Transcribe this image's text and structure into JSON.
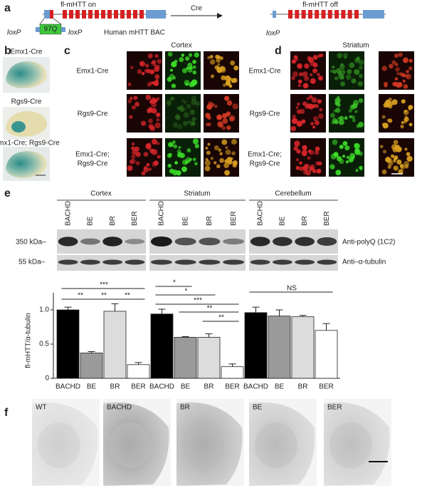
{
  "panel_labels": [
    "a",
    "b",
    "c",
    "d",
    "e",
    "f"
  ],
  "panel_a": {
    "construct_on": "fl-mHTT on",
    "arrow": "Cre",
    "construct_off": "fl-mHTT off",
    "loxp_left": "loxP",
    "repeat": "97Q",
    "loxp_right": "loxP",
    "bac": "Human mHTT BAC",
    "loxp_off": "loxP"
  },
  "panel_b": {
    "rows": [
      "Emx1-Cre",
      "Rgs9-Cre",
      "Emx1-Cre; Rgs9-Cre"
    ]
  },
  "panel_c": {
    "title": "Cortex",
    "rows": [
      "Emx1-Cre",
      "Rgs9-Cre",
      [
        "Emx1-Cre;",
        "Rgs9-Cre"
      ]
    ]
  },
  "panel_d": {
    "title": "Striatum",
    "rows": [
      "Emx1-Cre",
      "Rgs9-Cre",
      [
        "Emx1-Cre;",
        "Rgs9-Cre"
      ]
    ]
  },
  "panel_e": {
    "regions": [
      "Cortex",
      "Striatum",
      "Cerebellum"
    ],
    "lanes": [
      "BACHD",
      "BE",
      "BR",
      "BER",
      "BACHD",
      "BE",
      "BR",
      "BER",
      "BACHD",
      "BE",
      "BR",
      "BER"
    ],
    "markers": [
      "350 kDa–",
      "55 kDa–"
    ],
    "antibodies": [
      "Anti-polyQ (1C2)",
      "Anti–α-tubulin"
    ]
  },
  "chart_data": {
    "type": "bar",
    "y_label": "fl-mHTT/α-tubulin",
    "categories": [
      "BACHD",
      "BE",
      "BR",
      "BER",
      "BACHD",
      "BE",
      "BR",
      "BER",
      "BACHD",
      "BE",
      "BR",
      "BER"
    ],
    "values": [
      1.0,
      0.37,
      0.98,
      0.2,
      0.94,
      0.6,
      0.6,
      0.17,
      0.96,
      0.91,
      0.9,
      0.7
    ],
    "errors": [
      0.04,
      0.02,
      0.11,
      0.03,
      0.07,
      0.01,
      0.05,
      0.04,
      0.08,
      0.09,
      0.02,
      0.1
    ],
    "colors": [
      "#000000",
      "#9a9a9a",
      "#dcdcdc",
      "#ffffff",
      "#000000",
      "#9a9a9a",
      "#dcdcdc",
      "#ffffff",
      "#000000",
      "#9a9a9a",
      "#dcdcdc",
      "#ffffff"
    ],
    "ylim": [
      0,
      1.25
    ],
    "yticks": [
      0,
      0.5,
      {
        "value": 1,
        "label": "1.0"
      }
    ],
    "annotations": [
      "***",
      "**",
      "**",
      "**",
      "*",
      "*",
      "***",
      "**",
      "**",
      "NS"
    ]
  },
  "panel_f": {
    "labels": [
      "WT",
      "BACHD",
      "BR",
      "BE",
      "BER"
    ]
  }
}
